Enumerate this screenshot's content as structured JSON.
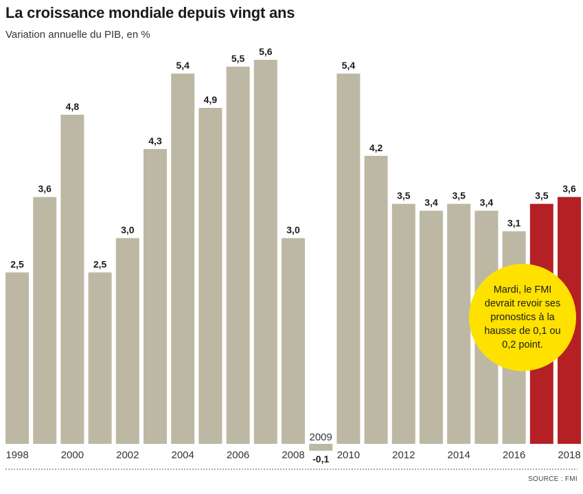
{
  "title": "La croissance mondiale depuis vingt ans",
  "subtitle": "Variation annuelle du PIB, en %",
  "source": "SOURCE : FMI",
  "callout": "Mardi, le FMI devrait revoir ses pronostics à la hausse de 0,1 ou 0,2 point.",
  "colors": {
    "bar": "#bdb8a4",
    "forecast": "#b52025",
    "callout": "#ffe100"
  },
  "chart_data": {
    "type": "bar",
    "title": "La croissance mondiale depuis vingt ans",
    "subtitle": "Variation annuelle du PIB, en %",
    "categories": [
      "1998",
      "1999",
      "2000",
      "2001",
      "2002",
      "2003",
      "2004",
      "2005",
      "2006",
      "2007",
      "2008",
      "2009",
      "2010",
      "2011",
      "2012",
      "2013",
      "2014",
      "2015",
      "2016",
      "2017",
      "2018"
    ],
    "values": [
      2.5,
      3.6,
      4.8,
      2.5,
      3.0,
      4.3,
      5.4,
      4.9,
      5.5,
      5.6,
      3.0,
      -0.1,
      5.4,
      4.2,
      3.5,
      3.4,
      3.5,
      3.4,
      3.1,
      3.5,
      3.6
    ],
    "value_labels": [
      "2,5",
      "3,6",
      "4,8",
      "2,5",
      "3,0",
      "4,3",
      "5,4",
      "4,9",
      "5,5",
      "5,6",
      "3,0",
      "-0,1",
      "5,4",
      "4,2",
      "3,5",
      "3,4",
      "3,5",
      "3,4",
      "3,1",
      "3,5",
      "3,6"
    ],
    "highlighted": [
      "2017",
      "2018"
    ],
    "tick_labels": [
      "1998",
      "2000",
      "2002",
      "2004",
      "2006",
      "2008",
      "2009",
      "2010",
      "2012",
      "2014",
      "2016",
      "2018"
    ],
    "xlabel": "",
    "ylabel": "",
    "ylim": [
      -0.1,
      5.6
    ],
    "grid": false,
    "legend": "none"
  }
}
